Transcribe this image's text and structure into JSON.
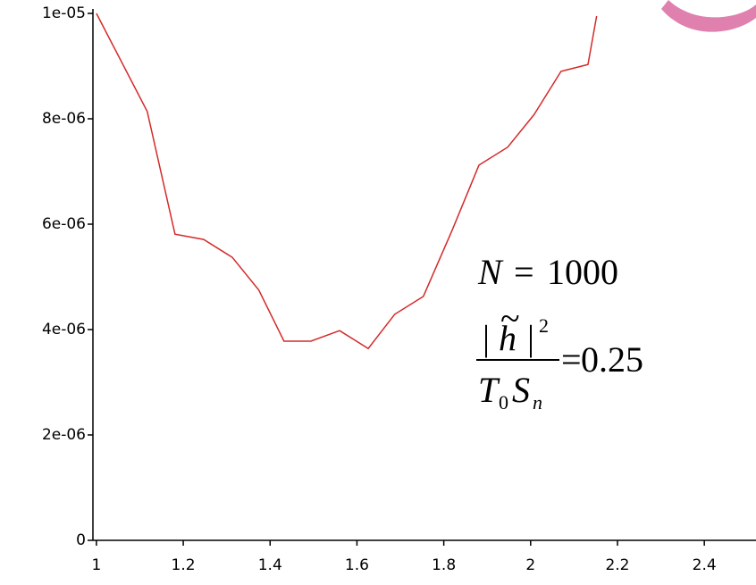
{
  "chart_data": {
    "type": "line",
    "x": [
      1,
      1.117,
      1.181,
      1.247,
      1.313,
      1.374,
      1.432,
      1.494,
      1.56,
      1.626,
      1.687,
      1.753,
      1.819,
      1.881,
      1.947,
      2.008,
      2.07,
      2.132,
      2.152
    ],
    "series": [
      {
        "color": "#d42a2a",
        "values": [
          1e-05,
          8.14e-06,
          5.81e-06,
          5.71e-06,
          5.37e-06,
          4.75e-06,
          3.78e-06,
          3.78e-06,
          3.98e-06,
          3.64e-06,
          4.29e-06,
          4.63e-06,
          5.88e-06,
          7.12e-06,
          7.46e-06,
          8.08e-06,
          8.9e-06,
          9.03e-06,
          9.95e-06
        ]
      }
    ],
    "xlim": [
      0.992,
      2.519
    ],
    "ylim": [
      0,
      1e-05
    ],
    "xticks": [
      1,
      1.2,
      1.4,
      1.6,
      1.8,
      2,
      2.2,
      2.4
    ],
    "yticks": [
      0,
      {
        "value": 2e-06,
        "label": "2e-06"
      },
      {
        "value": 4e-06,
        "label": "4e-06"
      },
      {
        "value": 6e-06,
        "label": "6e-06"
      },
      {
        "value": 8e-06,
        "label": "8e-06"
      },
      {
        "value": 1e-05,
        "label": "1e-05"
      }
    ],
    "annotations": {
      "n_symbol": "N",
      "n_equals": "=",
      "n_value": "1000",
      "numerator_bar_left": "|",
      "numerator_h": "h",
      "numerator_tilde": "~",
      "numerator_bar_right": "|",
      "numerator_power": "2",
      "denominator_t": "T",
      "denominator_t_sub": "0",
      "denominator_s": "S",
      "denominator_s_sub": "n",
      "ratio_equals": "=",
      "ratio_value": "0.25"
    }
  }
}
